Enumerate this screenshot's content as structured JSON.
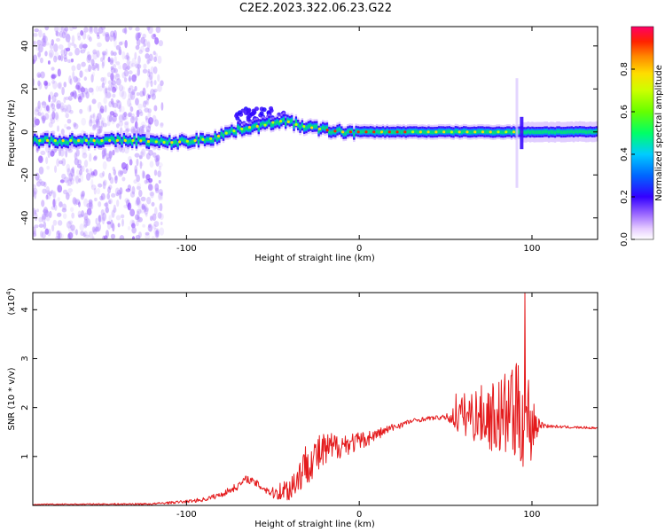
{
  "title": "C2E2.2023.322.06.23.G22",
  "chart_data": [
    {
      "type": "heatmap",
      "xlabel": "Height of straight line (km)",
      "ylabel": "Frequency (Hz)",
      "xlim": [
        -189,
        138
      ],
      "ylim": [
        -50,
        49
      ],
      "xticks": [
        -100,
        0,
        100
      ],
      "yticks": [
        -40,
        -20,
        0,
        20,
        40
      ],
      "ridge": {
        "x": [
          -189,
          -160,
          -130,
          -110,
          -95,
          -85,
          -75,
          -65,
          -55,
          -48,
          -42,
          -35,
          -28,
          -20,
          -10,
          0,
          30,
          60,
          85,
          92,
          96,
          110,
          138
        ],
        "freq": [
          -4,
          -4,
          -4,
          -5,
          -4,
          -3,
          0,
          2,
          3,
          5,
          5,
          3,
          2,
          1,
          0,
          0,
          0,
          0,
          0,
          0,
          0,
          0,
          0
        ]
      },
      "colorbar": {
        "label": "Normalized spectral amplitude",
        "ticks": [
          "0.0",
          "0.2",
          "0.4",
          "0.6",
          "0.8"
        ],
        "range": [
          0,
          1
        ]
      }
    },
    {
      "type": "line",
      "xlabel": "Height of straight line (km)",
      "ylabel": "SNR (10 * v/v)",
      "multiplier": "(x10",
      "multiplier_exp": "4",
      "multiplier_close": ")",
      "xlim": [
        -189,
        138
      ],
      "ylim": [
        0,
        4.35
      ],
      "xticks": [
        -100,
        0,
        100
      ],
      "yticks": [
        1,
        2,
        3,
        4
      ],
      "series": [
        {
          "color": "#e41a1c",
          "envelope": {
            "x": [
              -189,
              -120,
              -100,
              -90,
              -80,
              -70,
              -65,
              -60,
              -50,
              -40,
              -35,
              -30,
              -20,
              -10,
              0,
              10,
              20,
              30,
              40,
              50,
              55,
              60,
              70,
              80,
              85,
              90,
              95,
              100,
              105,
              110,
              120,
              138
            ],
            "y": [
              0.02,
              0.03,
              0.08,
              0.12,
              0.22,
              0.4,
              0.55,
              0.45,
              0.25,
              0.35,
              0.6,
              0.9,
              1.1,
              1.25,
              1.3,
              1.45,
              1.6,
              1.72,
              1.78,
              1.8,
              1.8,
              1.85,
              1.85,
              1.8,
              1.85,
              1.8,
              1.85,
              1.7,
              1.65,
              1.62,
              1.6,
              1.58
            ]
          },
          "noise": {
            "x": [
              -189,
              -120,
              -100,
              -80,
              -70,
              -60,
              -50,
              -40,
              -30,
              -20,
              -10,
              0,
              10,
              20,
              30,
              40,
              50,
              55,
              60,
              70,
              80,
              85,
              90,
              95,
              100,
              104,
              110,
              138
            ],
            "amp": [
              0.01,
              0.02,
              0.03,
              0.06,
              0.08,
              0.08,
              0.12,
              0.3,
              0.45,
              0.4,
              0.25,
              0.2,
              0.12,
              0.08,
              0.05,
              0.04,
              0.05,
              0.25,
              0.45,
              0.6,
              0.8,
              0.9,
              1.0,
              1.1,
              0.9,
              0.1,
              0.03,
              0.02
            ]
          },
          "peaks": {
            "x": [
              56,
              88,
              91,
              94,
              96
            ],
            "y": [
              2.28,
              2.65,
              2.9,
              1.0,
              4.35
            ]
          }
        }
      ]
    }
  ]
}
